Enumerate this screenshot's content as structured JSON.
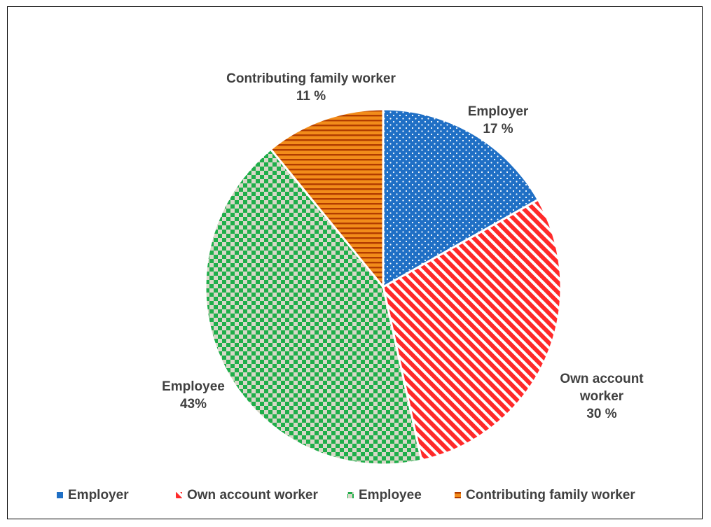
{
  "chart_data": {
    "type": "pie",
    "title": "",
    "start_angle_deg": 0,
    "direction": "clockwise",
    "legend_position": "bottom",
    "slices": [
      {
        "name": "Employer",
        "value": 17,
        "label_lines": [
          "Employer",
          "17 %"
        ],
        "color": "#1f6fc5",
        "pattern": "dots",
        "pattern_color": "#ffffff"
      },
      {
        "name": "Own account worker",
        "value": 30,
        "label_lines": [
          "Own account",
          "worker",
          "30 %"
        ],
        "color": "#ff2a2a",
        "pattern": "diagonal-stripes",
        "pattern_color": "#ffffff"
      },
      {
        "name": "Employee",
        "value": 43,
        "label_lines": [
          "Employee",
          "43%"
        ],
        "color": "#1fae4a",
        "pattern": "checkerboard",
        "pattern_color": "#d8d8c8"
      },
      {
        "name": "Contributing family worker",
        "value": 11,
        "label_lines": [
          "Contributing family worker",
          "11 %"
        ],
        "color": "#f28c1a",
        "pattern": "horizontal-stripes",
        "pattern_color": "#b23c00"
      }
    ],
    "legend": [
      "Employer",
      "Own account worker",
      "Employee",
      "Contributing family worker"
    ]
  }
}
